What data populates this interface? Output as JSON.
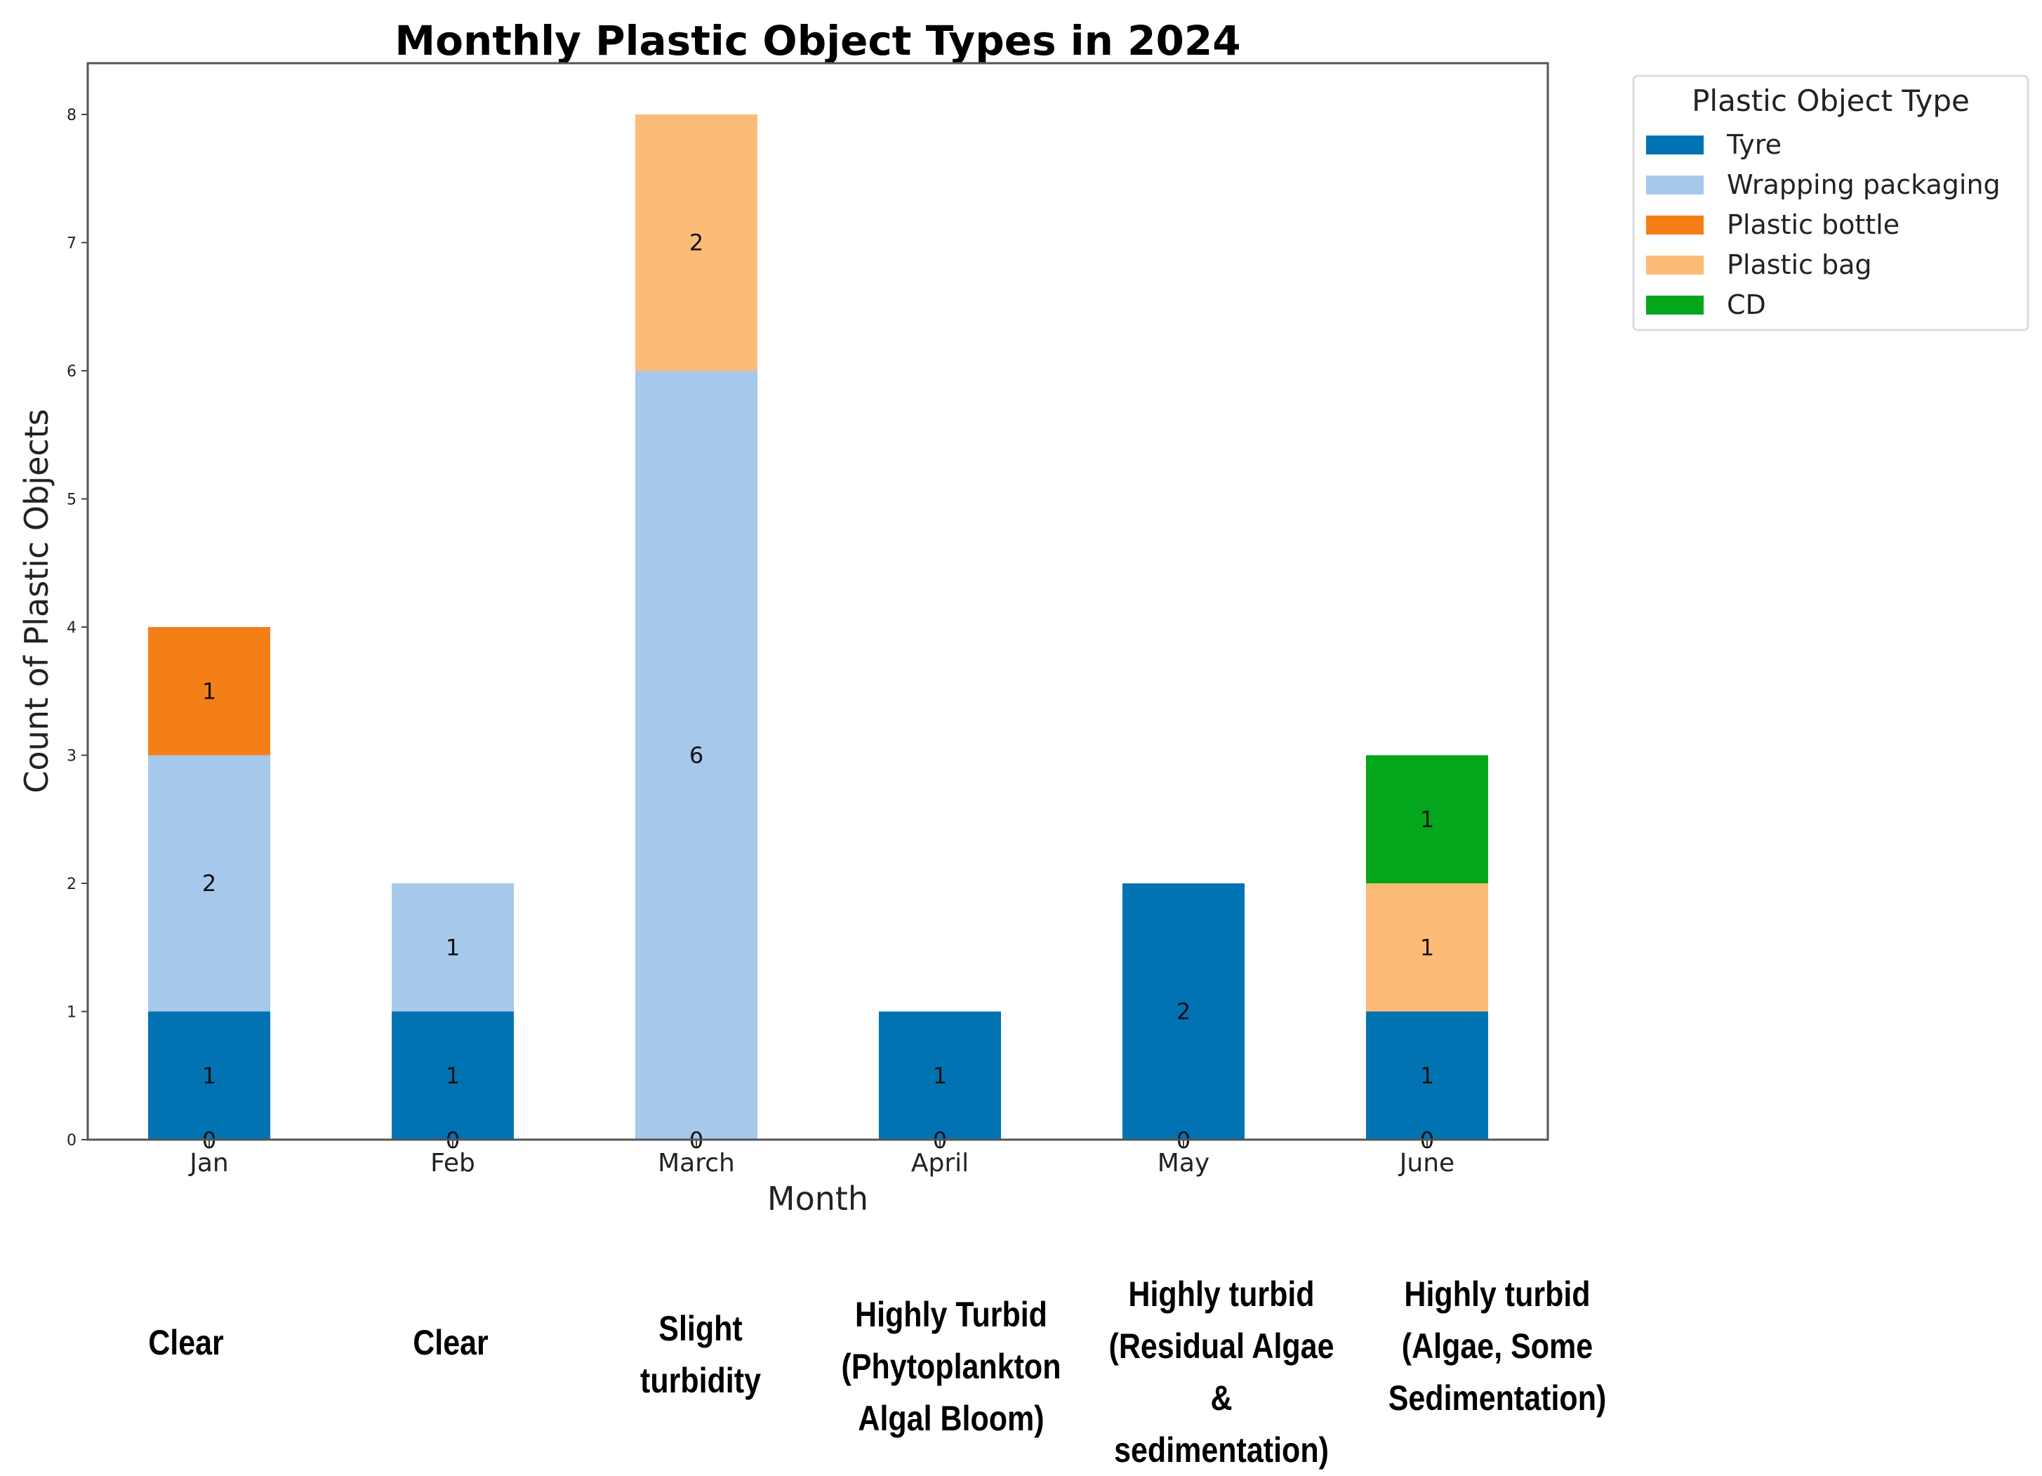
{
  "chart_data": {
    "type": "bar",
    "stacked": true,
    "title": "Monthly Plastic Object Types in 2024",
    "xlabel": "Month",
    "ylabel": "Count of Plastic Objects",
    "ylim": [
      0,
      8.4
    ],
    "yticks": [
      "0",
      "1",
      "2",
      "3",
      "4",
      "5",
      "6",
      "7",
      "8"
    ],
    "categories": [
      "Jan",
      "Feb",
      "March",
      "April",
      "May",
      "June"
    ],
    "series": [
      {
        "name": "Tyre",
        "color": "#0173b2",
        "values": [
          1,
          1,
          0,
          1,
          2,
          1
        ]
      },
      {
        "name": "Wrapping packaging",
        "color": "#a6c8ea",
        "values": [
          2,
          1,
          6,
          0,
          0,
          0
        ]
      },
      {
        "name": "Plastic bottle",
        "color": "#f57f17",
        "values": [
          1,
          0,
          0,
          0,
          0,
          0
        ]
      },
      {
        "name": "Plastic bag",
        "color": "#fdbb78",
        "values": [
          0,
          0,
          2,
          0,
          0,
          1
        ]
      },
      {
        "name": "CD",
        "color": "#04a61c",
        "values": [
          0,
          0,
          0,
          0,
          0,
          1
        ]
      }
    ],
    "zero_label": "0",
    "legend": {
      "title": "Plastic Object Type",
      "placement": "outside top-right"
    }
  },
  "conditions": [
    {
      "month": "Jan",
      "lines": [
        "Clear"
      ]
    },
    {
      "month": "Feb",
      "lines": [
        "Clear"
      ]
    },
    {
      "month": "March",
      "lines": [
        "Slight",
        "turbidity"
      ]
    },
    {
      "month": "April",
      "lines": [
        "Highly Turbid",
        "(Phytoplankton",
        "Algal Bloom)"
      ]
    },
    {
      "month": "May",
      "lines": [
        "Highly turbid",
        "(Residual Algae",
        "&",
        "sedimentation)"
      ]
    },
    {
      "month": "June",
      "lines": [
        "Highly turbid",
        "(Algae, Some",
        "Sedimentation)"
      ]
    }
  ]
}
